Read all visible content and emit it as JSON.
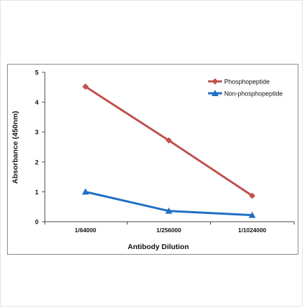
{
  "chart_data": {
    "type": "line",
    "title": "",
    "xlabel": "Antibody Dilution",
    "ylabel": "Absorbance (450nm)",
    "categories": [
      "1/64000",
      "1/256000",
      "1/1024000"
    ],
    "ylim": [
      0,
      5
    ],
    "yticks": [
      "0",
      "1",
      "2",
      "3",
      "4",
      "5"
    ],
    "grid": false,
    "legend_position": "top-right",
    "series": [
      {
        "name": "Phosphopeptide",
        "values": [
          4.52,
          2.72,
          0.87
        ],
        "color": "#c0504d",
        "marker": "diamond"
      },
      {
        "name": "Non-phosphopeptide",
        "values": [
          1.0,
          0.36,
          0.22
        ],
        "color": "#1f6fc5",
        "marker": "triangle"
      }
    ]
  }
}
